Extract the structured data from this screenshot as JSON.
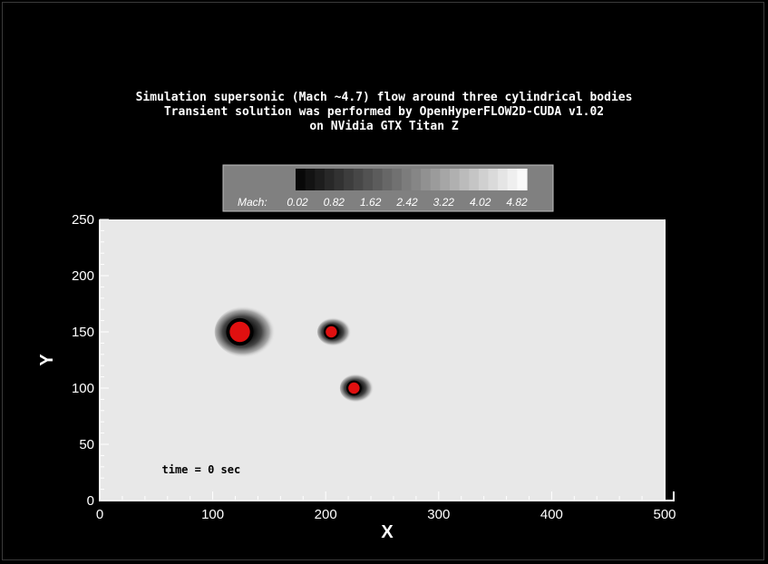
{
  "chart_data": {
    "type": "heatmap",
    "title": [
      "Simulation supersonic (Mach ~4.7) flow around three cylindrical bodies",
      "Transient solution was performed by OpenHyperFLOW2D-CUDA v1.02",
      "on NVidia GTX Titan Z"
    ],
    "xlabel": "X",
    "ylabel": "Y",
    "xlim": [
      0,
      500
    ],
    "ylim": [
      0,
      250
    ],
    "xticks": [
      "0",
      "100",
      "200",
      "300",
      "400",
      "500"
    ],
    "yticks": [
      "0",
      "50",
      "100",
      "150",
      "200",
      "250"
    ],
    "colorbar": {
      "label": "Mach:",
      "ticks": [
        "0.02",
        "0.82",
        "1.62",
        "2.42",
        "3.22",
        "4.02",
        "4.82"
      ],
      "min": 0.02,
      "max": 4.82,
      "levels": 24
    },
    "bodies": [
      {
        "x": 124,
        "y": 150,
        "radius": 9
      },
      {
        "x": 205,
        "y": 150,
        "radius": 5
      },
      {
        "x": 225,
        "y": 100,
        "radius": 5
      }
    ],
    "annotation": "time = 0 sec",
    "annotation_pos": {
      "x": 55,
      "y": 24
    },
    "colors": {
      "background": "#000000",
      "field": "#e8e8e8",
      "body": "#e01010",
      "axes": "#ffffff"
    }
  }
}
